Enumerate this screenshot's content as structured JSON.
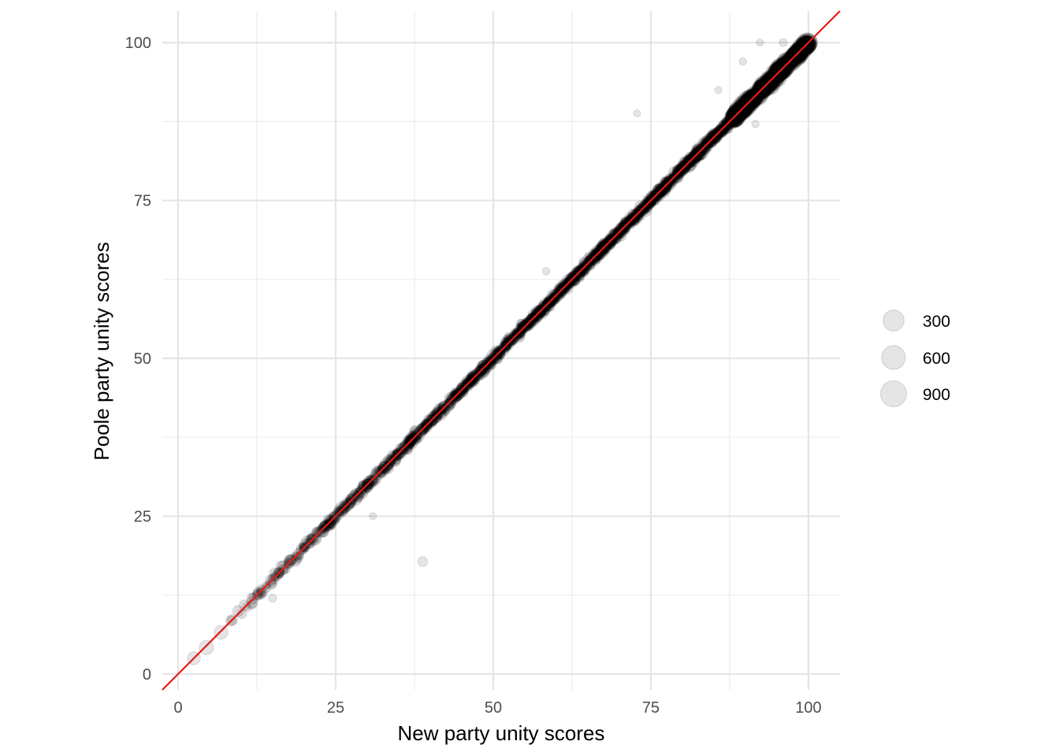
{
  "chart_data": {
    "type": "scatter",
    "title": "",
    "xlabel": "New party unity scores",
    "ylabel": "Poole party unity scores",
    "xlim": [
      -2.5,
      105
    ],
    "ylim": [
      -2.5,
      105
    ],
    "x_ticks": [
      0,
      25,
      50,
      75,
      100
    ],
    "y_ticks": [
      0,
      25,
      50,
      75,
      100
    ],
    "grid": true,
    "point_color": "#000000",
    "point_alpha": 0.1,
    "reference_line": {
      "type": "identity",
      "slope": 1,
      "intercept": 0,
      "color": "#e41a1c"
    },
    "size_legend": {
      "placement": "right",
      "entries": [
        {
          "label": "300",
          "value": 300
        },
        {
          "label": "600",
          "value": 600
        },
        {
          "label": "900",
          "value": 900
        }
      ]
    },
    "notable_points": [
      {
        "x": 72.8,
        "y": 88.8,
        "size": 100
      },
      {
        "x": 30.9,
        "y": 25.0,
        "size": 100
      },
      {
        "x": 58.4,
        "y": 63.8,
        "size": 120
      },
      {
        "x": 92.3,
        "y": 100.0,
        "size": 100
      },
      {
        "x": 96.0,
        "y": 100.0,
        "size": 150
      },
      {
        "x": 89.6,
        "y": 97.0,
        "size": 120
      },
      {
        "x": 85.7,
        "y": 92.5,
        "size": 100
      },
      {
        "x": 91.6,
        "y": 87.1,
        "size": 120
      },
      {
        "x": 2.5,
        "y": 2.5,
        "size": 700
      },
      {
        "x": 4.5,
        "y": 4.2,
        "size": 900
      },
      {
        "x": 6.8,
        "y": 6.6,
        "size": 800
      },
      {
        "x": 15.0,
        "y": 12.0,
        "size": 150
      },
      {
        "x": 38.8,
        "y": 17.8,
        "size": 300
      }
    ]
  }
}
